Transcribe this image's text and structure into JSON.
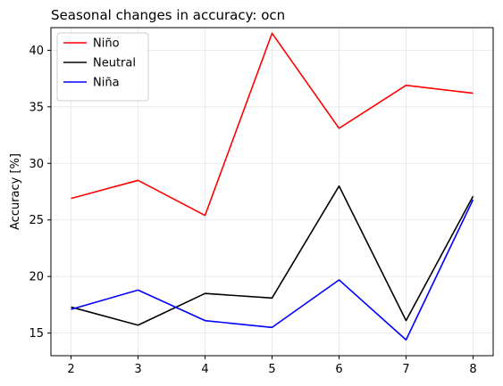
{
  "chart_data": {
    "type": "line",
    "title": "Seasonal changes in accuracy: ocn",
    "xlabel": "",
    "ylabel": "Accuracy [%]",
    "x": [
      2,
      3,
      4,
      5,
      6,
      7,
      8
    ],
    "xticks": [
      "2",
      "3",
      "4",
      "5",
      "6",
      "7",
      "8"
    ],
    "yticks": [
      "15",
      "20",
      "25",
      "30",
      "35",
      "40"
    ],
    "xlim": [
      1.7,
      8.3
    ],
    "ylim": [
      13.0,
      42.0
    ],
    "grid": true,
    "legend_position": "top-left",
    "series": [
      {
        "name": "Niño",
        "color": "#ff0000",
        "values": [
          26.9,
          28.5,
          25.4,
          41.5,
          33.1,
          36.9,
          36.2
        ]
      },
      {
        "name": "Neutral",
        "color": "#000000",
        "values": [
          17.3,
          15.7,
          18.5,
          18.1,
          28.0,
          16.1,
          27.1
        ]
      },
      {
        "name": "Niña",
        "color": "#0000ff",
        "values": [
          17.1,
          18.8,
          16.1,
          15.5,
          19.7,
          14.4,
          26.8
        ]
      }
    ]
  }
}
